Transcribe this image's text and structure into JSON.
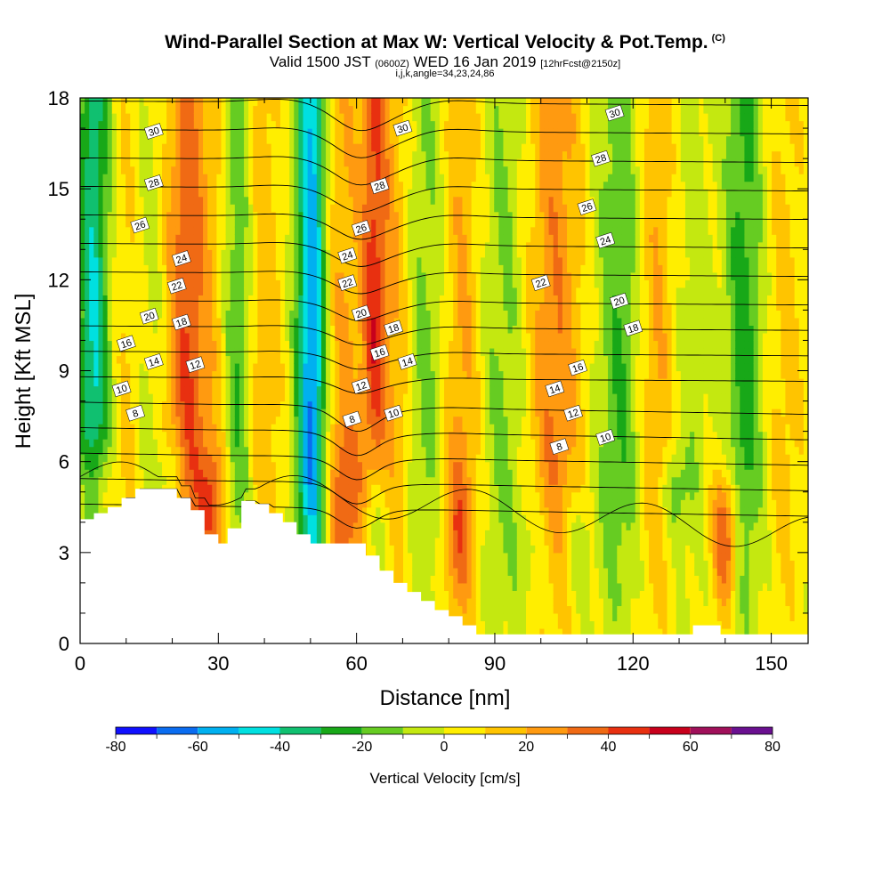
{
  "title": {
    "main": "Wind-Parallel Section at Max W: Vertical Velocity & Pot.Temp.",
    "main_unit": "(C)",
    "valid_prefix": "Valid 1500 JST",
    "valid_z": "(0600Z)",
    "valid_date": "WED 16 Jan 2019",
    "valid_fcst": "[12hrFcst@2150z]",
    "params": "i,j,k,angle=34,23,24,86"
  },
  "colors": {
    "background": "#ffffff",
    "terrain": "#ffffff",
    "contour": "#000000",
    "palette": [
      "#1010ff",
      "#0a6cf0",
      "#00b0f0",
      "#00e0e0",
      "#10c070",
      "#18a818",
      "#66cc22",
      "#c4e810",
      "#ffee00",
      "#ffc400",
      "#ff9a10",
      "#f06a14",
      "#e83010",
      "#c8001c",
      "#a0105a",
      "#6a1090"
    ]
  },
  "chart_data": {
    "type": "heatmap",
    "title": "Wind-Parallel Section at Max W: Vertical Velocity & Pot.Temp.",
    "xlabel": "Distance [nm]",
    "ylabel": "Height [Kft MSL]",
    "xlim": [
      0,
      158
    ],
    "ylim": [
      0,
      18
    ],
    "x_ticks": [
      0,
      30,
      60,
      90,
      120,
      150
    ],
    "x_minor_step": 10,
    "y_ticks": [
      0,
      3,
      6,
      9,
      12,
      15,
      18
    ],
    "y_minor_step": 1,
    "grid": false,
    "shaded_field": {
      "name": "Vertical Velocity [cm/s]",
      "colorbar_levels": [
        -80,
        -70,
        -60,
        -50,
        -40,
        -30,
        -20,
        -10,
        0,
        10,
        20,
        30,
        40,
        50,
        60,
        70,
        80
      ],
      "colorbar_labels": [
        -80,
        -60,
        -40,
        -20,
        0,
        20,
        40,
        60,
        80
      ],
      "bands": [
        {
          "x_center": 3,
          "x_half_width": 3.5,
          "peak": -45
        },
        {
          "x_center": 10,
          "x_half_width": 4,
          "peak": 10
        },
        {
          "x_center": 16,
          "x_half_width": 4,
          "peak": -10
        },
        {
          "x_center": 23,
          "x_half_width": 5,
          "peak": 38
        },
        {
          "x_center": 30,
          "x_half_width": 4,
          "peak": 8
        },
        {
          "x_center": 34,
          "x_half_width": 3,
          "peak": -25
        },
        {
          "x_center": 40,
          "x_half_width": 4,
          "peak": 15
        },
        {
          "x_center": 49,
          "x_half_width": 3,
          "peak": -15
        },
        {
          "x_center": 50.5,
          "x_half_width": 3,
          "peak": -52
        },
        {
          "x_center": 57,
          "x_half_width": 4,
          "peak": 20
        },
        {
          "x_center": 64,
          "x_half_width": 3,
          "peak": 45
        },
        {
          "x_center": 69,
          "x_half_width": 3,
          "peak": 15
        },
        {
          "x_center": 75,
          "x_half_width": 4,
          "peak": -15
        },
        {
          "x_center": 83,
          "x_half_width": 4,
          "peak": 20
        },
        {
          "x_center": 92,
          "x_half_width": 5,
          "peak": -15
        },
        {
          "x_center": 103,
          "x_half_width": 6,
          "peak": 28
        },
        {
          "x_center": 117,
          "x_half_width": 5,
          "peak": -22
        },
        {
          "x_center": 125,
          "x_half_width": 4,
          "peak": 20
        },
        {
          "x_center": 133,
          "x_half_width": 4,
          "peak": -8
        },
        {
          "x_center": 144,
          "x_half_width": 4,
          "peak": -28
        },
        {
          "x_center": 153,
          "x_half_width": 4,
          "peak": 12
        }
      ],
      "low_level_features": [
        {
          "x": 3,
          "y": 5,
          "rx": 4,
          "ry": 1.5,
          "value": 25
        },
        {
          "x": 20,
          "y": 5.5,
          "rx": 3,
          "ry": 1.2,
          "value": -20
        },
        {
          "x": 29,
          "y": 4.5,
          "rx": 3,
          "ry": 2,
          "value": 28
        },
        {
          "x": 58,
          "y": 4.5,
          "rx": 4,
          "ry": 2.5,
          "value": 25
        },
        {
          "x": 64,
          "y": 4,
          "rx": 3,
          "ry": 3,
          "value": -40
        },
        {
          "x": 82,
          "y": 3.5,
          "rx": 3,
          "ry": 2.5,
          "value": 25
        },
        {
          "x": 98,
          "y": 3,
          "rx": 4,
          "ry": 2,
          "value": -12
        },
        {
          "x": 108,
          "y": 3,
          "rx": 3,
          "ry": 2,
          "value": -15
        },
        {
          "x": 129,
          "y": 5,
          "rx": 3,
          "ry": 1.5,
          "value": -20
        },
        {
          "x": 140,
          "y": 3.5,
          "rx": 3,
          "ry": 2.5,
          "value": 42
        }
      ]
    },
    "contour_field": {
      "name": "Potential Temperature (C)",
      "levels": [
        2,
        4,
        6,
        8,
        10,
        12,
        14,
        16,
        18,
        20,
        22,
        24,
        26,
        28,
        30,
        32
      ],
      "labels": [
        {
          "text": "30",
          "x": 16,
          "y": 16.9
        },
        {
          "text": "28",
          "x": 16,
          "y": 15.2
        },
        {
          "text": "26",
          "x": 13,
          "y": 13.8
        },
        {
          "text": "24",
          "x": 22,
          "y": 12.7
        },
        {
          "text": "22",
          "x": 21,
          "y": 11.8
        },
        {
          "text": "20",
          "x": 15,
          "y": 10.8
        },
        {
          "text": "18",
          "x": 22,
          "y": 10.6
        },
        {
          "text": "16",
          "x": 10,
          "y": 9.9
        },
        {
          "text": "14",
          "x": 16,
          "y": 9.3
        },
        {
          "text": "12",
          "x": 25,
          "y": 9.2
        },
        {
          "text": "10",
          "x": 9,
          "y": 8.4
        },
        {
          "text": "8",
          "x": 12,
          "y": 7.6
        },
        {
          "text": "30",
          "x": 70,
          "y": 17.0
        },
        {
          "text": "28",
          "x": 65,
          "y": 15.1
        },
        {
          "text": "26",
          "x": 61,
          "y": 13.7
        },
        {
          "text": "24",
          "x": 58,
          "y": 12.8
        },
        {
          "text": "22",
          "x": 58,
          "y": 11.9
        },
        {
          "text": "20",
          "x": 61,
          "y": 10.9
        },
        {
          "text": "18",
          "x": 68,
          "y": 10.4
        },
        {
          "text": "16",
          "x": 65,
          "y": 9.6
        },
        {
          "text": "14",
          "x": 71,
          "y": 9.3
        },
        {
          "text": "12",
          "x": 61,
          "y": 8.5
        },
        {
          "text": "10",
          "x": 68,
          "y": 7.6
        },
        {
          "text": "8",
          "x": 59,
          "y": 7.4
        },
        {
          "text": "30",
          "x": 116,
          "y": 17.5
        },
        {
          "text": "28",
          "x": 113,
          "y": 16.0
        },
        {
          "text": "26",
          "x": 110,
          "y": 14.4
        },
        {
          "text": "24",
          "x": 114,
          "y": 13.3
        },
        {
          "text": "22",
          "x": 100,
          "y": 11.9
        },
        {
          "text": "20",
          "x": 117,
          "y": 11.3
        },
        {
          "text": "18",
          "x": 120,
          "y": 10.4
        },
        {
          "text": "16",
          "x": 108,
          "y": 9.1
        },
        {
          "text": "14",
          "x": 103,
          "y": 8.4
        },
        {
          "text": "12",
          "x": 107,
          "y": 7.6
        },
        {
          "text": "10",
          "x": 114,
          "y": 6.8
        },
        {
          "text": "8",
          "x": 104,
          "y": 6.5
        }
      ]
    },
    "terrain": {
      "x": [
        0,
        3,
        6,
        9,
        12,
        15,
        18,
        21,
        24,
        27,
        30,
        32,
        35,
        38,
        41,
        44,
        47,
        50,
        53,
        56,
        59,
        62,
        65,
        68,
        71,
        74,
        77,
        80,
        83,
        86,
        89,
        92,
        130,
        133,
        136,
        139,
        142,
        158
      ],
      "height_kft": [
        4.1,
        4.3,
        4.5,
        4.8,
        5.1,
        5.1,
        5.1,
        4.8,
        4.4,
        3.6,
        3.3,
        3.8,
        4.7,
        4.6,
        4.3,
        4.0,
        3.6,
        3.3,
        3.3,
        3.3,
        3.3,
        2.9,
        2.4,
        2.0,
        1.7,
        1.4,
        1.1,
        0.9,
        0.6,
        0.3,
        0.3,
        0.3,
        0.3,
        0.6,
        0.6,
        0.3,
        0.3,
        0.3
      ]
    },
    "colorbar_title": "Vertical Velocity [cm/s]"
  }
}
